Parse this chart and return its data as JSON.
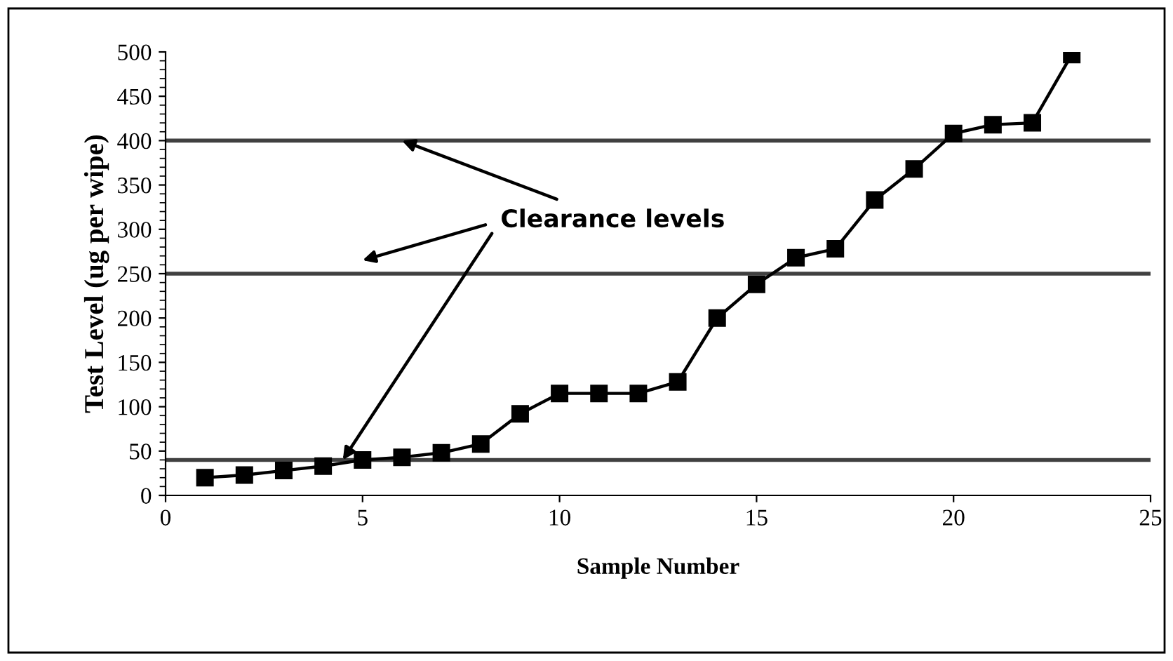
{
  "chart_data": {
    "type": "line",
    "xlabel": "Sample Number",
    "ylabel": "Test Level (ug per wipe)",
    "x": [
      1,
      2,
      3,
      4,
      5,
      6,
      7,
      8,
      9,
      10,
      11,
      12,
      13,
      14,
      15,
      16,
      17,
      18,
      19,
      20,
      21,
      22,
      23
    ],
    "series": [
      {
        "color": "#000000",
        "values": [
          20,
          23,
          28,
          33,
          40,
          43,
          48,
          58,
          92,
          115,
          115,
          115,
          128,
          200,
          238,
          268,
          278,
          333,
          368,
          408,
          418,
          420,
          497
        ]
      }
    ],
    "marker": "square",
    "line_style": "solid",
    "xlim": [
      0,
      25
    ],
    "xticks": [
      0,
      5,
      10,
      15,
      20,
      25
    ],
    "ylim": [
      0,
      500
    ],
    "yticks": [
      0,
      50,
      100,
      150,
      200,
      250,
      300,
      350,
      400,
      450,
      500
    ],
    "ref_lines": [
      {
        "axis": "y",
        "value": 40,
        "color": "#404040"
      },
      {
        "axis": "y",
        "value": 250,
        "color": "#404040"
      },
      {
        "axis": "y",
        "value": 400,
        "color": "#404040"
      }
    ],
    "annotations": [
      {
        "text": "Clearance levels",
        "x": 6,
        "y": 400
      }
    ],
    "grid": false,
    "legend": false
  }
}
